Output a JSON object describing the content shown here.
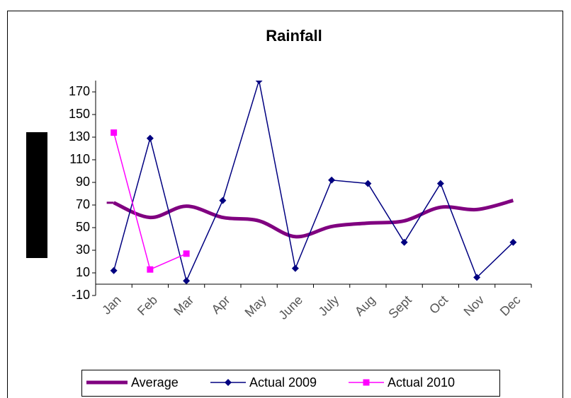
{
  "chart_data": {
    "type": "line",
    "title": "Rainfall",
    "categories": [
      "Jan",
      "Feb",
      "Mar",
      "Apr",
      "May",
      "June",
      "July",
      "Aug",
      "Sept",
      "Oct",
      "Nov",
      "Dec"
    ],
    "series": [
      {
        "name": "Average",
        "color": "#800080",
        "values": [
          72,
          59,
          69,
          59,
          56,
          42,
          51,
          54,
          56,
          68,
          66,
          74
        ]
      },
      {
        "name": "Actual 2009",
        "color": "#000080",
        "values": [
          12,
          129,
          3,
          74,
          180,
          14,
          92,
          89,
          37,
          89,
          6,
          37
        ]
      },
      {
        "name": "Actual 2010",
        "color": "#ff00ff",
        "values": [
          134,
          13,
          27,
          null,
          null,
          null,
          null,
          null,
          null,
          null,
          null,
          null
        ]
      }
    ],
    "ylim": [
      -10,
      180
    ],
    "yticks": [
      -10,
      10,
      30,
      50,
      70,
      90,
      110,
      130,
      150,
      170
    ]
  }
}
